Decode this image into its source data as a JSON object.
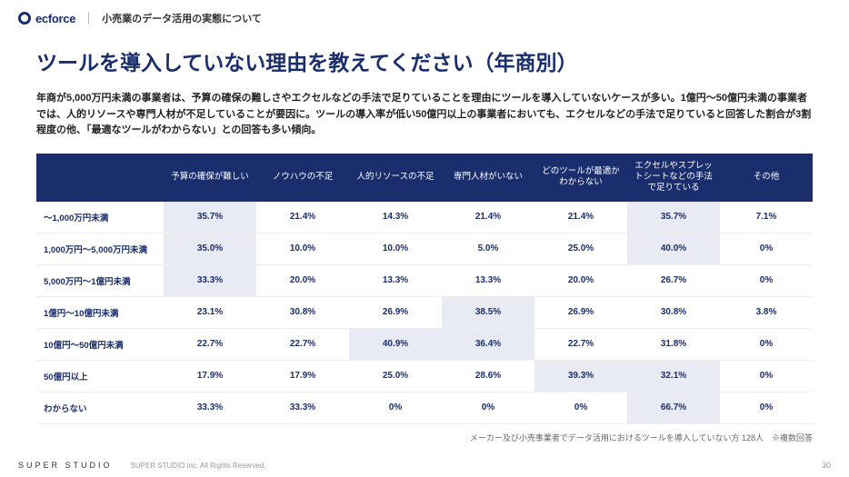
{
  "header": {
    "logo": "ecforce",
    "subtitle": "小売業のデータ活用の実態について"
  },
  "title": "ツールを導入していない理由を教えてください（年商別）",
  "description": "年商が5,000万円未満の事業者は、予算の確保の難しさやエクセルなどの手法で足りていることを理由にツールを導入していないケースが多い。1億円〜50億円未満の事業者では、人的リソースや専門人材が不足していることが要因に。ツールの導入率が低い50億円以上の事業者においても、エクセルなどの手法で足りていると回答した割合が3割程度の他、「最適なツールがわからない」との回答も多い傾向。",
  "table": {
    "columns": [
      "予算の確保が難しい",
      "ノウハウの不足",
      "人的リソースの不足",
      "専門人材がいない",
      "どのツールが最適かわからない",
      "エクセルやスプレットシートなどの手法で足りている",
      "その他"
    ],
    "rows": [
      {
        "label": "〜1,000万円未満",
        "cells": [
          {
            "v": "35.7%",
            "h": true
          },
          {
            "v": "21.4%"
          },
          {
            "v": "14.3%"
          },
          {
            "v": "21.4%"
          },
          {
            "v": "21.4%"
          },
          {
            "v": "35.7%",
            "h": true
          },
          {
            "v": "7.1%"
          }
        ]
      },
      {
        "label": "1,000万円〜5,000万円未満",
        "cells": [
          {
            "v": "35.0%",
            "h": true
          },
          {
            "v": "10.0%"
          },
          {
            "v": "10.0%"
          },
          {
            "v": "5.0%"
          },
          {
            "v": "25.0%"
          },
          {
            "v": "40.0%",
            "h": true
          },
          {
            "v": "0%"
          }
        ]
      },
      {
        "label": "5,000万円〜1億円未満",
        "cells": [
          {
            "v": "33.3%",
            "h": true
          },
          {
            "v": "20.0%"
          },
          {
            "v": "13.3%"
          },
          {
            "v": "13.3%"
          },
          {
            "v": "20.0%"
          },
          {
            "v": "26.7%"
          },
          {
            "v": "0%"
          }
        ]
      },
      {
        "label": "1億円〜10億円未満",
        "cells": [
          {
            "v": "23.1%"
          },
          {
            "v": "30.8%"
          },
          {
            "v": "26.9%"
          },
          {
            "v": "38.5%",
            "h": true
          },
          {
            "v": "26.9%"
          },
          {
            "v": "30.8%"
          },
          {
            "v": "3.8%"
          }
        ]
      },
      {
        "label": "10億円〜50億円未満",
        "cells": [
          {
            "v": "22.7%"
          },
          {
            "v": "22.7%"
          },
          {
            "v": "40.9%",
            "h": true
          },
          {
            "v": "36.4%",
            "h": true
          },
          {
            "v": "22.7%"
          },
          {
            "v": "31.8%"
          },
          {
            "v": "0%"
          }
        ]
      },
      {
        "label": "50億円以上",
        "cells": [
          {
            "v": "17.9%"
          },
          {
            "v": "17.9%"
          },
          {
            "v": "25.0%"
          },
          {
            "v": "28.6%"
          },
          {
            "v": "39.3%",
            "h": true
          },
          {
            "v": "32.1%",
            "h": true
          },
          {
            "v": "0%"
          }
        ]
      },
      {
        "label": "わからない",
        "cells": [
          {
            "v": "33.3%"
          },
          {
            "v": "33.3%"
          },
          {
            "v": "0%"
          },
          {
            "v": "0%"
          },
          {
            "v": "0%"
          },
          {
            "v": "66.7%",
            "h": true
          },
          {
            "v": "0%"
          }
        ]
      }
    ]
  },
  "note": "メーカー及び小売事業者でデータ活用におけるツールを導入していない方 128人　※複数回答",
  "footer": {
    "brand": "SUPER STUDIO",
    "copyright": "SUPER STUDIO inc. All Rights Reserved.",
    "page": "30"
  },
  "colors": {
    "primary": "#1a2e6e",
    "highlight": "#e8ebf3",
    "border": "#eeeeee"
  }
}
